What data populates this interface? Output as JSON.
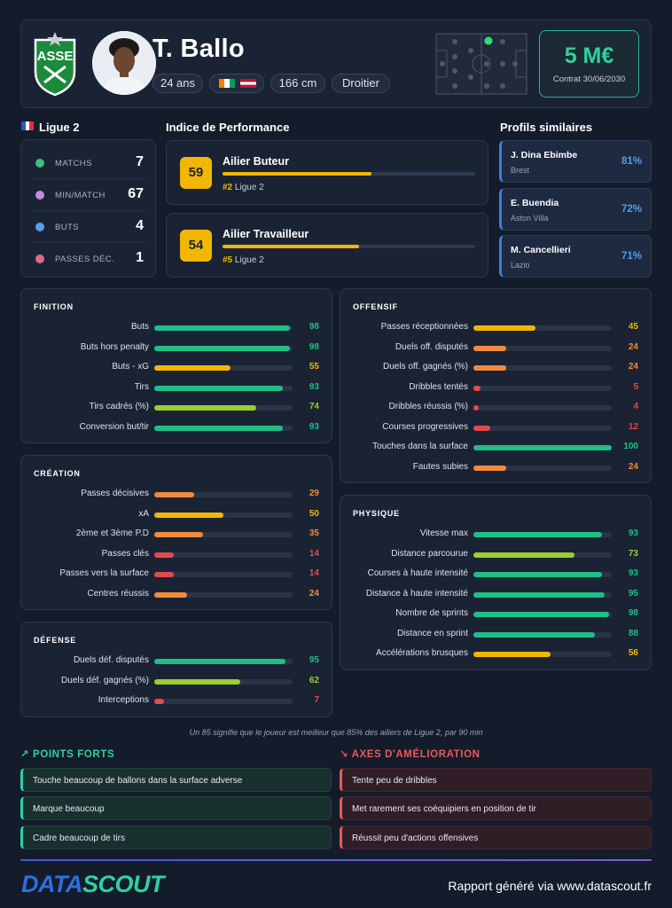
{
  "header": {
    "player_name": "T. Ballo",
    "age": "24 ans",
    "height": "166 cm",
    "foot": "Droitier",
    "market_value": "5 M€",
    "contract": "Contrat 30/06/2030",
    "club_logo_text": "ASSE"
  },
  "league": {
    "name": "Ligue 2"
  },
  "league_stats": [
    {
      "label": "MATCHS",
      "value": "7",
      "icon_color": "#3fbf7f"
    },
    {
      "label": "MIN/MATCH",
      "value": "67",
      "icon_color": "#c58ad8"
    },
    {
      "label": "BUTS",
      "value": "4",
      "icon_color": "#5b9bf0"
    },
    {
      "label": "PASSES DÉC.",
      "value": "1",
      "icon_color": "#e06a8a"
    }
  ],
  "performance": {
    "title": "Indice de Performance",
    "items": [
      {
        "score": "59",
        "title": "Ailier Buteur",
        "rank": "#2",
        "league": "Ligue 2",
        "level": 0.59
      },
      {
        "score": "54",
        "title": "Ailier Travailleur",
        "rank": "#5",
        "league": "Ligue 2",
        "level": 0.54
      }
    ]
  },
  "similar": {
    "title": "Profils similaires",
    "items": [
      {
        "name": "J. Dina Ebimbe",
        "club": "Brest",
        "pct": "81%"
      },
      {
        "name": "E. Buendia",
        "club": "Aston Villa",
        "pct": "72%"
      },
      {
        "name": "M. Cancellieri",
        "club": "Lazio",
        "pct": "71%"
      }
    ]
  },
  "blocks": {
    "finition": {
      "title": "FINITION",
      "rows": [
        {
          "label": "Buts",
          "value": 98
        },
        {
          "label": "Buts hors penalty",
          "value": 98
        },
        {
          "label": "Buts - xG",
          "value": 55
        },
        {
          "label": "Tirs",
          "value": 93
        },
        {
          "label": "Tirs cadrés (%)",
          "value": 74
        },
        {
          "label": "Conversion but/tir",
          "value": 93
        }
      ]
    },
    "creation": {
      "title": "CRÉATION",
      "rows": [
        {
          "label": "Passes décisives",
          "value": 29
        },
        {
          "label": "xA",
          "value": 50
        },
        {
          "label": "2ème et 3ème P.D",
          "value": 35
        },
        {
          "label": "Passes clés",
          "value": 14
        },
        {
          "label": "Passes vers la surface",
          "value": 14
        },
        {
          "label": "Centres réussis",
          "value": 24
        }
      ]
    },
    "defense": {
      "title": "DÉFENSE",
      "rows": [
        {
          "label": "Duels déf. disputés",
          "value": 95
        },
        {
          "label": "Duels déf. gagnés (%)",
          "value": 62
        },
        {
          "label": "Interceptions",
          "value": 7
        }
      ]
    },
    "offensif": {
      "title": "OFFENSIF",
      "rows": [
        {
          "label": "Passes réceptionnées",
          "value": 45
        },
        {
          "label": "Duels off. disputés",
          "value": 24
        },
        {
          "label": "Duels off. gagnés (%)",
          "value": 24
        },
        {
          "label": "Dribbles tentés",
          "value": 5
        },
        {
          "label": "Dribbles réussis (%)",
          "value": 4
        },
        {
          "label": "Courses progressives",
          "value": 12
        },
        {
          "label": "Touches dans la surface",
          "value": 100
        },
        {
          "label": "Fautes subies",
          "value": 24
        }
      ]
    },
    "physique": {
      "title": "PHYSIQUE",
      "rows": [
        {
          "label": "Vitesse max",
          "value": 93
        },
        {
          "label": "Distance parcourue",
          "value": 73
        },
        {
          "label": "Courses à haute intensité",
          "value": 93
        },
        {
          "label": "Distance à haute intensité",
          "value": 95
        },
        {
          "label": "Nombre de sprints",
          "value": 98
        },
        {
          "label": "Distance en sprint",
          "value": 88
        },
        {
          "label": "Accélérations brusques",
          "value": 56
        }
      ]
    }
  },
  "footnote": "Un 85 signifie que le joueur est meilleur que 85% des ailiers de Ligue 2, par 90 min",
  "strengths": {
    "title": "POINTS FORTS",
    "items": [
      "Touche beaucoup de ballons dans la surface adverse",
      "Marque beaucoup",
      "Cadre beaucoup de tirs"
    ]
  },
  "improvements": {
    "title": "AXES D'AMÉLIORATION",
    "items": [
      "Tente peu de dribbles",
      "Met rarement ses coéquipiers en position de tir",
      "Réussit peu d'actions offensives"
    ]
  },
  "footer": {
    "brand_part1": "DATA",
    "brand_part2": "SCOUT",
    "text": "Rapport généré via www.datascout.fr"
  },
  "colors": {
    "green": "#1fbf85",
    "lime": "#9acd32",
    "yellow": "#f2b705",
    "orange": "#f28a3c",
    "red": "#e5484d",
    "accent_green": "#2fd19d",
    "accent_red": "#e85a5a"
  }
}
